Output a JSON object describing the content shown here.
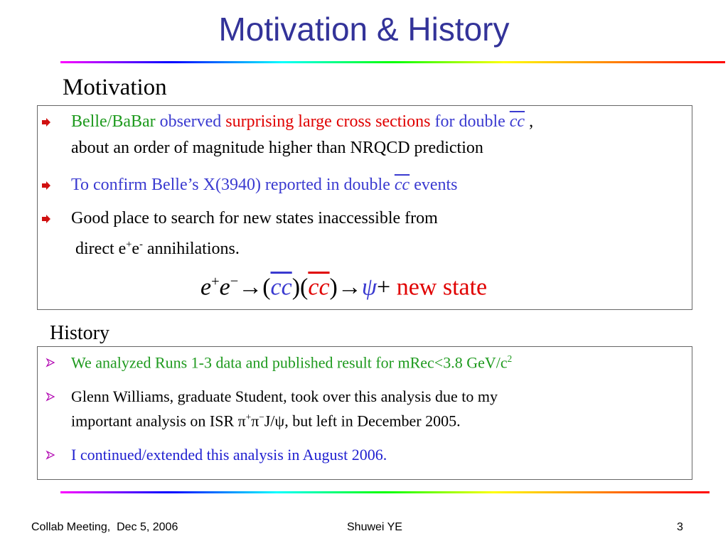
{
  "title": "Motivation & History",
  "motivation": {
    "heading": "Motivation",
    "bullets": [
      {
        "lines": [
          [
            {
              "text": "Belle/BaBar",
              "color": "#1e9a1e"
            },
            {
              "text": " observed ",
              "color": "#3a3ad0"
            },
            {
              "text": "surprising large cross sections",
              "color": "#e00000"
            },
            {
              "text": " for double ",
              "color": "#3a3ad0"
            },
            {
              "text": "cc",
              "color": "#3a3ad0",
              "italic": true,
              "bar": true
            },
            {
              "text": " ,"
            }
          ],
          [
            {
              "text": "about an order of magnitude higher than NRQCD prediction"
            }
          ]
        ]
      },
      {
        "lines": [
          [
            {
              "text": "To confirm Belle’s X(3940) reported in double ",
              "color": "#3a3ad0"
            },
            {
              "text": "cc",
              "color": "#3a3ad0",
              "italic": true,
              "bar": true
            },
            {
              "text": " events",
              "color": "#3a3ad0"
            }
          ]
        ]
      },
      {
        "lines": [
          [
            {
              "text": "Good place to search for new states inaccessible from"
            }
          ],
          [
            {
              "text": " direct e"
            },
            {
              "text": "+",
              "sup": true
            },
            {
              "text": "e"
            },
            {
              "text": "-",
              "sup": true
            },
            {
              "text": " annihilations."
            }
          ]
        ]
      }
    ],
    "formula": [
      {
        "text": "e",
        "italic": true
      },
      {
        "text": "+",
        "sup": true
      },
      {
        "text": "e",
        "italic": true
      },
      {
        "text": "−",
        "sup": true
      },
      {
        "text": "→("
      },
      {
        "text": "cc",
        "color": "#3a3ad0",
        "italic": true,
        "bar": true
      },
      {
        "text": ")("
      },
      {
        "text": "cc",
        "color": "#e00000",
        "italic": true,
        "bar": true
      },
      {
        "text": ")→"
      },
      {
        "text": "ψ",
        "color": "#3a3ad0",
        "italic": true
      },
      {
        "text": "+ "
      },
      {
        "text": "new state",
        "color": "#e00000"
      }
    ]
  },
  "history": {
    "heading": "History",
    "bullets": [
      {
        "lines": [
          [
            {
              "text": "We analyzed Runs 1-3 data and published result for mRec<3.8 GeV/c",
              "color": "#1e9a1e"
            },
            {
              "text": "2",
              "color": "#1e9a1e",
              "sup": true
            }
          ]
        ]
      },
      {
        "lines": [
          [
            {
              "text": "Glenn Williams, graduate Student, took over this analysis due to my"
            }
          ],
          [
            {
              "text": "important analysis on ISR π"
            },
            {
              "text": "+",
              "sup": true
            },
            {
              "text": "π"
            },
            {
              "text": "−",
              "sup": true
            },
            {
              "text": "J/ψ, but left in December 2005."
            }
          ]
        ]
      },
      {
        "lines": [
          [
            {
              "text": "I continued/extended this analysis in August 2006.",
              "color": "#2020d0"
            }
          ]
        ]
      }
    ]
  },
  "footer": {
    "left": "Collab Meeting,  Dec 5, 2006",
    "center": "Shuwei YE",
    "right": "3"
  }
}
